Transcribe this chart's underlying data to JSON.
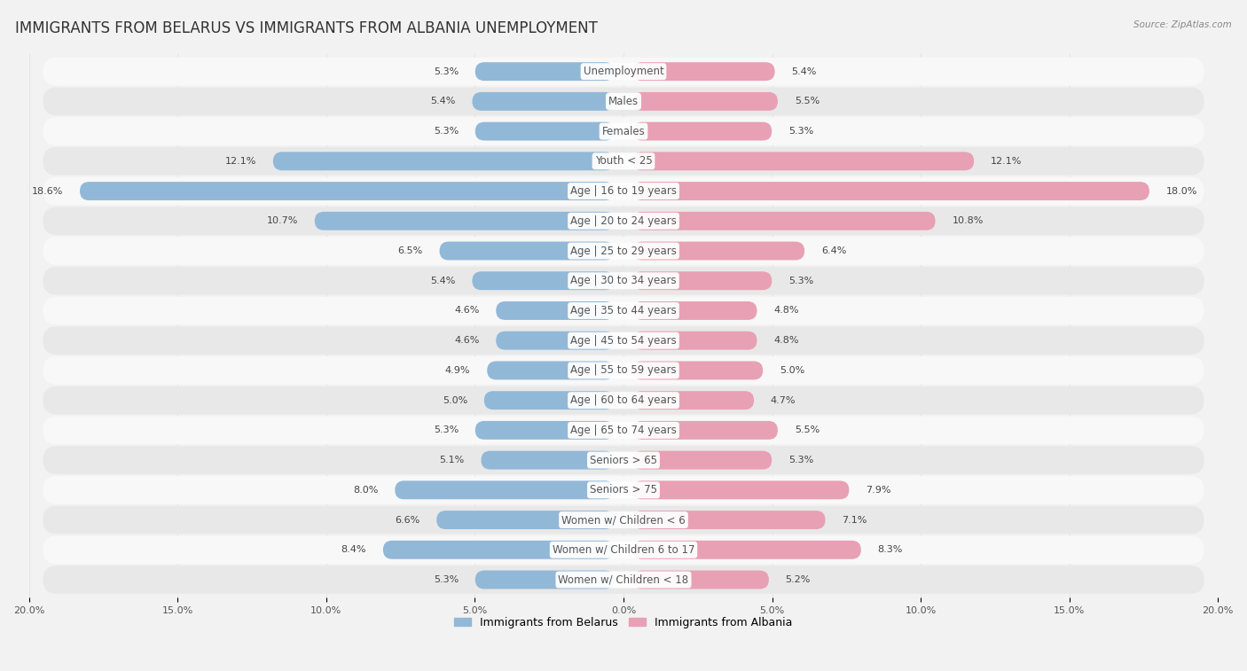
{
  "title": "IMMIGRANTS FROM BELARUS VS IMMIGRANTS FROM ALBANIA UNEMPLOYMENT",
  "source": "Source: ZipAtlas.com",
  "categories": [
    "Unemployment",
    "Males",
    "Females",
    "Youth < 25",
    "Age | 16 to 19 years",
    "Age | 20 to 24 years",
    "Age | 25 to 29 years",
    "Age | 30 to 34 years",
    "Age | 35 to 44 years",
    "Age | 45 to 54 years",
    "Age | 55 to 59 years",
    "Age | 60 to 64 years",
    "Age | 65 to 74 years",
    "Seniors > 65",
    "Seniors > 75",
    "Women w/ Children < 6",
    "Women w/ Children 6 to 17",
    "Women w/ Children < 18"
  ],
  "belarus_values": [
    5.3,
    5.4,
    5.3,
    12.1,
    18.6,
    10.7,
    6.5,
    5.4,
    4.6,
    4.6,
    4.9,
    5.0,
    5.3,
    5.1,
    8.0,
    6.6,
    8.4,
    5.3
  ],
  "albania_values": [
    5.4,
    5.5,
    5.3,
    12.1,
    18.0,
    10.8,
    6.4,
    5.3,
    4.8,
    4.8,
    5.0,
    4.7,
    5.5,
    5.3,
    7.9,
    7.1,
    8.3,
    5.2
  ],
  "belarus_color": "#92b8d8",
  "albania_color": "#e8a0b4",
  "belarus_label": "Immigrants from Belarus",
  "albania_label": "Immigrants from Albania",
  "max_val": 20.0,
  "background_color": "#f2f2f2",
  "row_color_odd": "#e8e8e8",
  "row_color_even": "#f8f8f8",
  "title_fontsize": 12,
  "label_fontsize": 8.5,
  "value_fontsize": 8,
  "tick_fontsize": 8
}
